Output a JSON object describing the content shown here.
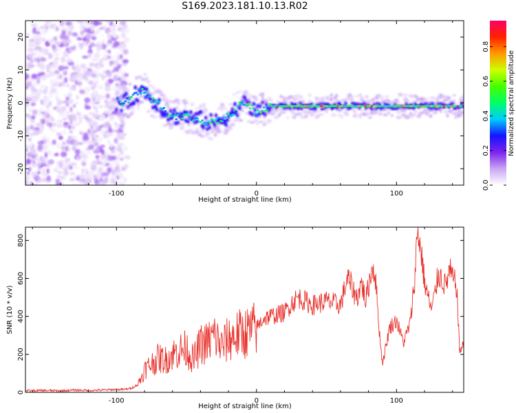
{
  "figure": {
    "title": "S169.2023.181.10.13.R02"
  },
  "chart_data": [
    {
      "type": "heatmap",
      "title": "",
      "xlabel": "Height of straight line (km)",
      "ylabel": "Frequency (Hz)",
      "xlim": [
        -165,
        148
      ],
      "ylim": [
        -25,
        25
      ],
      "xticks": [
        -100,
        0,
        100
      ],
      "yticks": [
        -20,
        -10,
        0,
        10,
        20
      ],
      "grid": false,
      "colorbar": {
        "label": "Normalized spectral amplitude",
        "range": [
          0,
          0.95
        ],
        "ticks": [
          "0.0",
          "0.2",
          "0.4",
          "0.6",
          "0.8"
        ],
        "colors": [
          "#ffffff",
          "#c9a6f3",
          "#7e22f0",
          "#1414ff",
          "#00ccff",
          "#00ff66",
          "#44ff00",
          "#ccff00",
          "#ff9900",
          "#ff2200",
          "#ff0066"
        ]
      },
      "ridge": {
        "x": [
          -100,
          -95,
          -90,
          -85,
          -80,
          -75,
          -70,
          -65,
          -60,
          -55,
          -50,
          -45,
          -40,
          -35,
          -30,
          -25,
          -20,
          -15,
          -10,
          -5,
          0,
          5,
          10,
          15,
          20,
          40,
          60,
          80,
          100,
          120,
          148
        ],
        "y": [
          0,
          0,
          1,
          3,
          4,
          1,
          0,
          -3,
          -4,
          -4,
          -4,
          -5,
          -5,
          -6,
          -6,
          -5,
          -4,
          -2,
          0,
          -1,
          -3,
          -2,
          -1,
          -1,
          -1,
          -1,
          -1,
          -1,
          -1,
          -1,
          -1
        ]
      }
    },
    {
      "type": "line",
      "title": "",
      "xlabel": "Height of straight line (km)",
      "ylabel": "SNR (10 * v/v)",
      "xlim": [
        -165,
        148
      ],
      "ylim": [
        0,
        870
      ],
      "xticks": [
        -100,
        0,
        100
      ],
      "yticks": [
        0,
        200,
        400,
        600,
        800
      ],
      "grid": false,
      "color": "#e8302a",
      "series": [
        {
          "name": "",
          "x": [
            -165,
            -150,
            -140,
            -130,
            -120,
            -110,
            -100,
            -95,
            -90,
            -85,
            -82,
            -80,
            -75,
            -70,
            -65,
            -60,
            -55,
            -50,
            -45,
            -40,
            -35,
            -30,
            -25,
            -20,
            -15,
            -10,
            -5,
            0,
            5,
            10,
            15,
            20,
            25,
            30,
            35,
            40,
            45,
            50,
            55,
            60,
            65,
            68,
            70,
            72,
            75,
            78,
            80,
            83,
            85,
            88,
            90,
            95,
            100,
            105,
            110,
            113,
            115,
            118,
            120,
            125,
            128,
            130,
            135,
            138,
            140,
            143,
            145,
            148
          ],
          "y": [
            8,
            10,
            8,
            12,
            10,
            12,
            15,
            15,
            20,
            40,
            80,
            120,
            150,
            180,
            170,
            200,
            220,
            230,
            170,
            250,
            260,
            300,
            240,
            280,
            300,
            310,
            320,
            340,
            390,
            400,
            410,
            420,
            470,
            500,
            480,
            460,
            470,
            480,
            470,
            460,
            600,
            560,
            520,
            500,
            580,
            480,
            560,
            670,
            600,
            300,
            150,
            340,
            380,
            260,
            370,
            600,
            860,
            720,
            580,
            430,
            540,
            630,
            560,
            640,
            600,
            560,
            220,
            250
          ]
        }
      ]
    }
  ]
}
